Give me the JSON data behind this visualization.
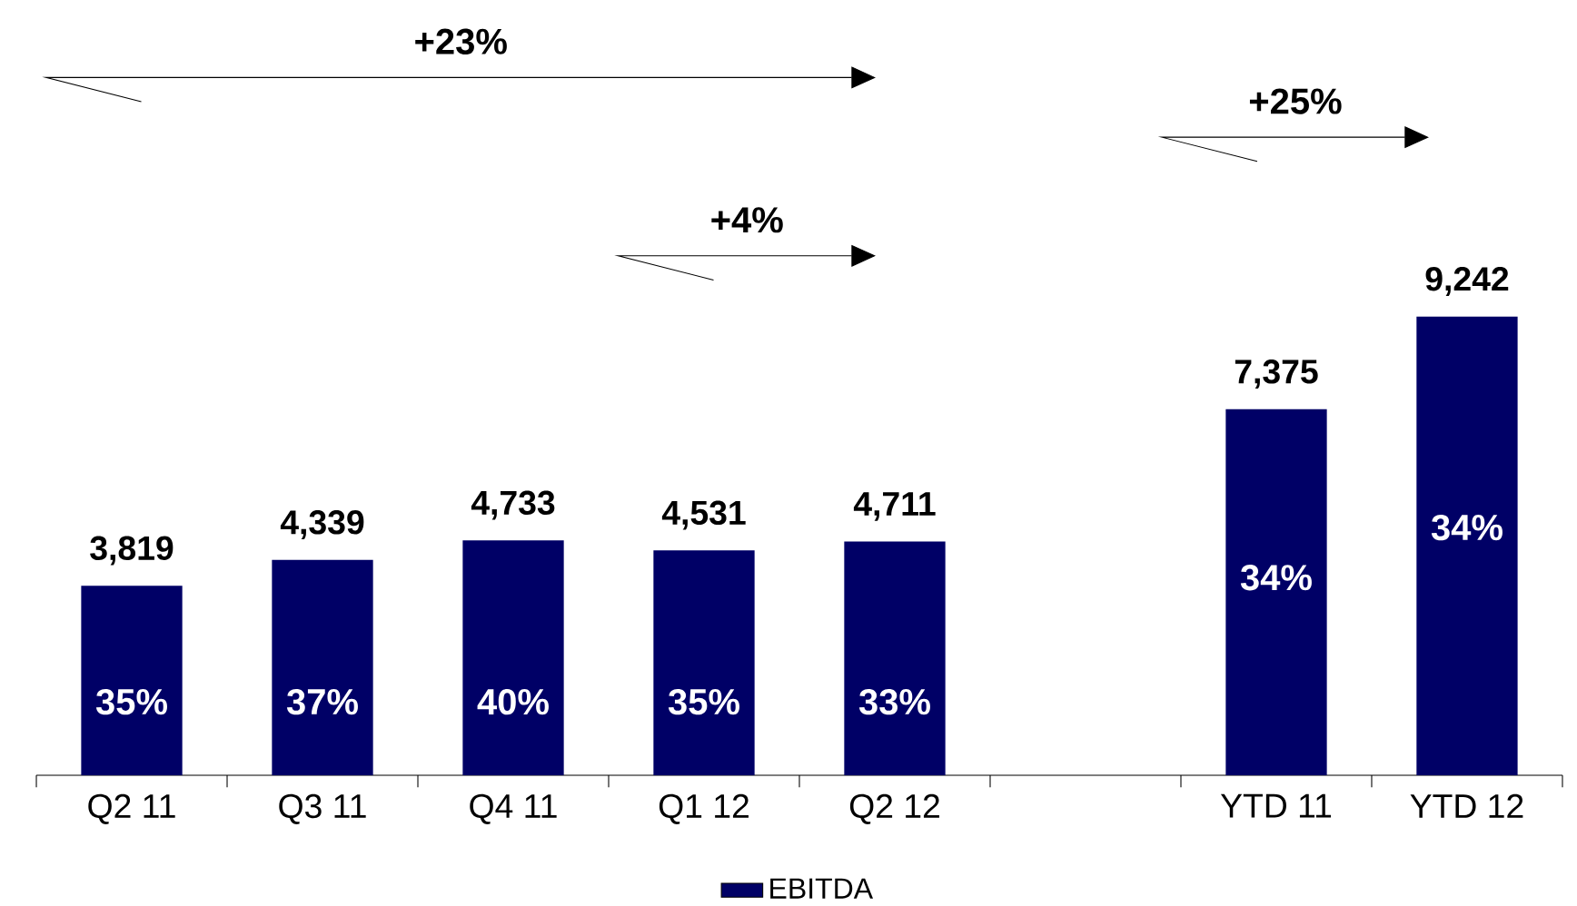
{
  "chart_data": {
    "type": "bar",
    "categories": [
      "Q2 11",
      "Q3 11",
      "Q4 11",
      "Q1 12",
      "Q2 12",
      null,
      "YTD 11",
      "YTD 12"
    ],
    "series": [
      {
        "name": "EBITDA",
        "color": "#000066",
        "values": [
          3819,
          4339,
          4733,
          4531,
          4711,
          null,
          7375,
          9242
        ],
        "value_labels": [
          "3,819",
          "4,339",
          "4,733",
          "4,531",
          "4,711",
          null,
          "7,375",
          "9,242"
        ]
      }
    ],
    "tick_labels": "x",
    "legend": "bottom",
    "annotations": [
      "35%",
      "37%",
      "40%",
      "35%",
      "33%",
      "34%",
      "34%",
      "+23%",
      "+4%",
      "+25%"
    ]
  }
}
